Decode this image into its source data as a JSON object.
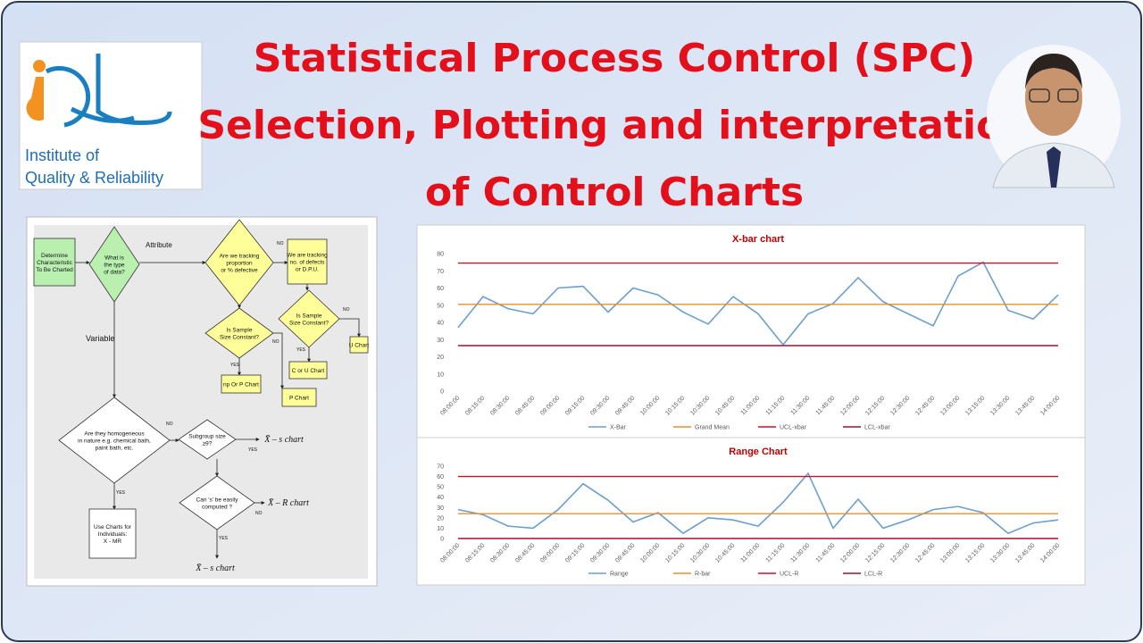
{
  "header": {
    "title_lines": [
      "Statistical Process Control (SPC)",
      "Selection, Plotting and interpretation",
      "of Control Charts"
    ]
  },
  "logo": {
    "lines": [
      "Institute of",
      "Quality & Reliability"
    ]
  },
  "flowchart": {
    "nodes": [
      {
        "lines": [
          "Determine",
          "Characteristic",
          "To Be Charted"
        ]
      },
      {
        "lines": [
          "What is",
          "the type",
          "of data?"
        ]
      },
      {
        "lines": [
          "Are we tracking",
          "proportion",
          "or % defective"
        ]
      },
      {
        "lines": [
          "We are tracking",
          "no. of defects",
          "or D.P.U."
        ]
      },
      {
        "lines": [
          "Is Sample",
          "Size Constant?"
        ]
      },
      {
        "lines": [
          "Is Sample",
          "Size Constant?"
        ]
      },
      {
        "lines": [
          "np Or P Chart"
        ]
      },
      {
        "lines": [
          "P Chart"
        ]
      },
      {
        "lines": [
          "C or U Chart"
        ]
      },
      {
        "lines": [
          "U Chart"
        ]
      },
      {
        "lines": [
          "Are they homogeneous",
          "in nature e.g. chemical bath,",
          "paint bath, etc."
        ]
      },
      {
        "lines": [
          "Subgroup size",
          "≥9?"
        ]
      },
      {
        "lines": [
          "X̄ – s chart"
        ]
      },
      {
        "lines": [
          "Can 's' be easily",
          "computed ?"
        ]
      },
      {
        "lines": [
          "X̄ – R chart"
        ]
      },
      {
        "lines": [
          "Use Charts for",
          "Individuals:",
          "X - MR"
        ]
      },
      {
        "lines": [
          "X̄ – s chart"
        ]
      }
    ],
    "edge_labels": [
      "Attribute",
      "Variable",
      "NO",
      "NO",
      "YES",
      "NO",
      "YES",
      "NO",
      "YES",
      "NO",
      "YES",
      "YES"
    ]
  },
  "chart_data": [
    {
      "type": "line",
      "title": "X-bar chart",
      "x": [
        "08:00:00",
        "08:15:00",
        "08:30:00",
        "08:45:00",
        "09:00:00",
        "09:15:00",
        "09:30:00",
        "09:45:00",
        "10:00:00",
        "10:15:00",
        "10:30:00",
        "10:45:00",
        "11:00:00",
        "11:15:00",
        "11:30:00",
        "11:45:00",
        "12:00:00",
        "12:15:00",
        "12:30:00",
        "12:45:00",
        "13:00:00",
        "13:15:00",
        "13:30:00",
        "13:45:00",
        "14:00:00"
      ],
      "series": [
        {
          "name": "X-Bar",
          "color": "#6a9fcf",
          "values": [
            37,
            55,
            48,
            45,
            60,
            61,
            46,
            60,
            56,
            46,
            39,
            55,
            45,
            27,
            45,
            51,
            66,
            52,
            45,
            38,
            67,
            75,
            47,
            42,
            56
          ]
        },
        {
          "name": "Grand Mean",
          "color": "#e8902e",
          "values": [
            50.5,
            50.5,
            50.5,
            50.5,
            50.5,
            50.5,
            50.5,
            50.5,
            50.5,
            50.5,
            50.5,
            50.5,
            50.5,
            50.5,
            50.5,
            50.5,
            50.5,
            50.5,
            50.5,
            50.5,
            50.5,
            50.5,
            50.5,
            50.5,
            50.5
          ]
        },
        {
          "name": "UCL-xbar",
          "color": "#c8102e",
          "values": [
            74.5,
            74.5,
            74.5,
            74.5,
            74.5,
            74.5,
            74.5,
            74.5,
            74.5,
            74.5,
            74.5,
            74.5,
            74.5,
            74.5,
            74.5,
            74.5,
            74.5,
            74.5,
            74.5,
            74.5,
            74.5,
            74.5,
            74.5,
            74.5,
            74.5
          ]
        },
        {
          "name": "LCL-xbar",
          "color": "#a01030",
          "values": [
            26.5,
            26.5,
            26.5,
            26.5,
            26.5,
            26.5,
            26.5,
            26.5,
            26.5,
            26.5,
            26.5,
            26.5,
            26.5,
            26.5,
            26.5,
            26.5,
            26.5,
            26.5,
            26.5,
            26.5,
            26.5,
            26.5,
            26.5,
            26.5,
            26.5
          ]
        }
      ],
      "ylim": [
        0,
        80
      ],
      "yticks": [
        0,
        10,
        20,
        30,
        40,
        50,
        60,
        70,
        80
      ],
      "grid": false,
      "legend": "bottom"
    },
    {
      "type": "line",
      "title": "Range Chart",
      "x": [
        "08:00:00",
        "08:15:00",
        "08:30:00",
        "08:45:00",
        "09:00:00",
        "09:15:00",
        "09:30:00",
        "09:45:00",
        "10:00:00",
        "10:15:00",
        "10:30:00",
        "10:45:00",
        "11:00:00",
        "11:15:00",
        "11:30:00",
        "11:45:00",
        "12:00:00",
        "12:15:00",
        "12:30:00",
        "12:45:00",
        "13:00:00",
        "13:15:00",
        "13:30:00",
        "13:45:00",
        "14:00:00"
      ],
      "series": [
        {
          "name": "Range",
          "color": "#6a9fcf",
          "values": [
            28,
            23,
            12,
            10,
            28,
            53,
            37,
            16,
            25,
            5,
            20,
            18,
            12,
            35,
            63,
            10,
            38,
            10,
            18,
            28,
            31,
            25,
            5,
            15,
            18
          ]
        },
        {
          "name": "R-bar",
          "color": "#e8902e",
          "values": [
            24,
            24,
            24,
            24,
            24,
            24,
            24,
            24,
            24,
            24,
            24,
            24,
            24,
            24,
            24,
            24,
            24,
            24,
            24,
            24,
            24,
            24,
            24,
            24,
            24
          ]
        },
        {
          "name": "UCL-R",
          "color": "#c8102e",
          "values": [
            60,
            60,
            60,
            60,
            60,
            60,
            60,
            60,
            60,
            60,
            60,
            60,
            60,
            60,
            60,
            60,
            60,
            60,
            60,
            60,
            60,
            60,
            60,
            60,
            60
          ]
        },
        {
          "name": "LCL-R",
          "color": "#a01030",
          "values": [
            0,
            0,
            0,
            0,
            0,
            0,
            0,
            0,
            0,
            0,
            0,
            0,
            0,
            0,
            0,
            0,
            0,
            0,
            0,
            0,
            0,
            0,
            0,
            0,
            0
          ]
        }
      ],
      "ylim": [
        0,
        70
      ],
      "yticks": [
        0,
        10,
        20,
        30,
        40,
        50,
        60,
        70
      ],
      "grid": false,
      "legend": "bottom"
    }
  ]
}
